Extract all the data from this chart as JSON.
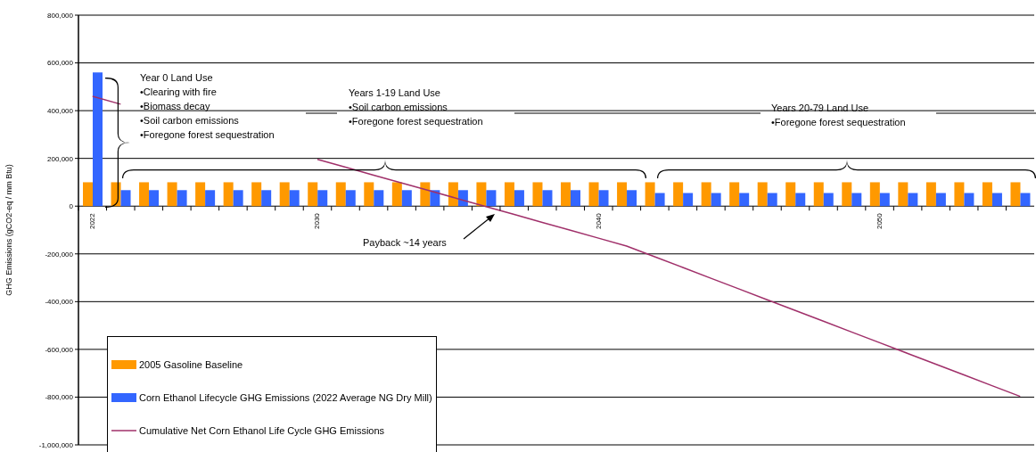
{
  "chart_data": {
    "type": "bar",
    "ylabel": "GHG Emissions (gCO2-eq / mm Btu)",
    "categories": [
      "2022",
      null,
      null,
      null,
      null,
      null,
      null,
      null,
      "2030",
      null,
      null,
      null,
      null,
      null,
      null,
      null,
      null,
      null,
      "2040",
      null,
      null,
      null,
      null,
      null,
      null,
      null,
      null,
      null,
      "2050",
      null,
      null,
      null,
      null,
      null
    ],
    "series": [
      {
        "name": "2005 Gasoline Baseline",
        "color": "#ff9900",
        "values": [
          100000,
          100000,
          100000,
          100000,
          100000,
          100000,
          100000,
          100000,
          100000,
          100000,
          100000,
          100000,
          100000,
          100000,
          100000,
          100000,
          100000,
          100000,
          100000,
          100000,
          100000,
          100000,
          100000,
          100000,
          100000,
          100000,
          100000,
          100000,
          100000,
          100000,
          100000,
          100000,
          100000,
          100000
        ]
      },
      {
        "name": "Corn Ethanol Lifecycle GHG Emissions (2022 Average NG Dry Mill)",
        "color": "#3366ff",
        "values": [
          560000,
          67000,
          67000,
          67000,
          67000,
          67000,
          67000,
          67000,
          67000,
          67000,
          67000,
          67000,
          67000,
          67000,
          67000,
          67000,
          67000,
          67000,
          67000,
          67000,
          55000,
          55000,
          55000,
          55000,
          55000,
          55000,
          55000,
          55000,
          55000,
          55000,
          55000,
          55000,
          55000,
          55000
        ]
      },
      {
        "name": "Cumulative Net Corn Ethanol Life Cycle GHG Emissions",
        "type": "line",
        "color": "#a0306a",
        "values": [
          460000,
          427000,
          null,
          null,
          null,
          null,
          null,
          null,
          196000,
          163000,
          130000,
          97000,
          64000,
          31000,
          -2000,
          -35000,
          -68000,
          -101000,
          -134000,
          -167000,
          -212000,
          -257000,
          -302000,
          -347000,
          -392000,
          -437000,
          -482000,
          -527000,
          -572000,
          -617000,
          -662000,
          -707000,
          -752000,
          -797000
        ]
      }
    ],
    "ylim": [
      -1000000,
      800000
    ],
    "yticks": [
      {
        "value": -1000000,
        "label": "-1,000,000"
      },
      {
        "value": -800000,
        "label": "-800,000"
      },
      {
        "value": -600000,
        "label": "-600,000"
      },
      {
        "value": -400000,
        "label": "-400,000"
      },
      {
        "value": -200000,
        "label": "-200,000"
      },
      0,
      {
        "value": 200000,
        "label": "200,000"
      },
      {
        "value": 400000,
        "label": "400,000"
      },
      {
        "value": 600000,
        "label": "600,000"
      },
      {
        "value": 800000,
        "label": "800,000"
      }
    ],
    "grid": "y",
    "legend": "bottom left",
    "marker": "none",
    "annotations": [
      "Year 0 Land Use\n•Clearing with fire\n•Biomass decay\n•Soil carbon emissions\n•Foregone forest sequestration",
      "Years 1-19 Land Use\n•Soil carbon emissions\n•Foregone forest sequestration",
      "Years 20-79 Land Use\n•Foregone forest sequestration",
      "Payback ~14 years"
    ]
  }
}
